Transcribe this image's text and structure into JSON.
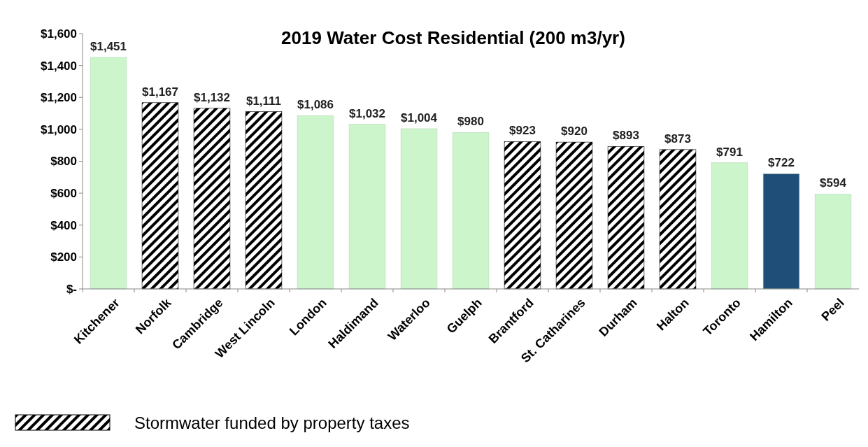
{
  "chart_data": {
    "type": "bar",
    "title": "2019 Water Cost Residential (200 m3/yr)",
    "stacked": true,
    "legend": "bottom",
    "grid": false,
    "categories": [
      "Kitchener",
      "Norfolk",
      "Cambridge",
      "West Lincoln",
      "London",
      "Haldimand",
      "Waterloo",
      "Guelph",
      "Brantford",
      "St. Catharines",
      "Durham",
      "Halton",
      "Toronto",
      "Hamilton",
      "Peel"
    ],
    "ylim": [
      0,
      1600
    ],
    "yticks": [
      {
        "value": 0,
        "label": "$-"
      },
      {
        "value": 200,
        "label": "$200"
      },
      {
        "value": 400,
        "label": "$400"
      },
      {
        "value": 600,
        "label": "$600"
      },
      {
        "value": 800,
        "label": "$800"
      },
      {
        "value": 1000,
        "label": "$1,000"
      },
      {
        "value": 1200,
        "label": "$1,200"
      },
      {
        "value": 1400,
        "label": "$1,400"
      },
      {
        "value": 1600,
        "label": "$1,600"
      }
    ],
    "series": [
      {
        "color": "#ccf5cc",
        "values": [
          1451,
          null,
          null,
          null,
          1086,
          1032,
          1004,
          980,
          null,
          null,
          null,
          null,
          791,
          null,
          594
        ],
        "value_labels": [
          "$1,451",
          null,
          null,
          null,
          "$1,086",
          "$1,032",
          "$1,004",
          "$980",
          null,
          null,
          null,
          null,
          "$791",
          null,
          "$594"
        ]
      },
      {
        "name": "Stormwater funded by property taxes",
        "color": "#000000",
        "values": [
          null,
          1167,
          1132,
          1111,
          null,
          null,
          null,
          null,
          923,
          920,
          893,
          873,
          null,
          null,
          null
        ],
        "value_labels": [
          null,
          "$1,167",
          "$1,132",
          "$1,111",
          null,
          null,
          null,
          null,
          "$923",
          "$920",
          "$893",
          "$873",
          null,
          null,
          null
        ]
      },
      {
        "color": "#1f4e79",
        "values": [
          null,
          null,
          null,
          null,
          null,
          null,
          null,
          null,
          null,
          null,
          null,
          null,
          null,
          722,
          null
        ],
        "value_labels": [
          null,
          null,
          null,
          null,
          null,
          null,
          null,
          null,
          null,
          null,
          null,
          null,
          null,
          "$722",
          null
        ]
      }
    ]
  }
}
